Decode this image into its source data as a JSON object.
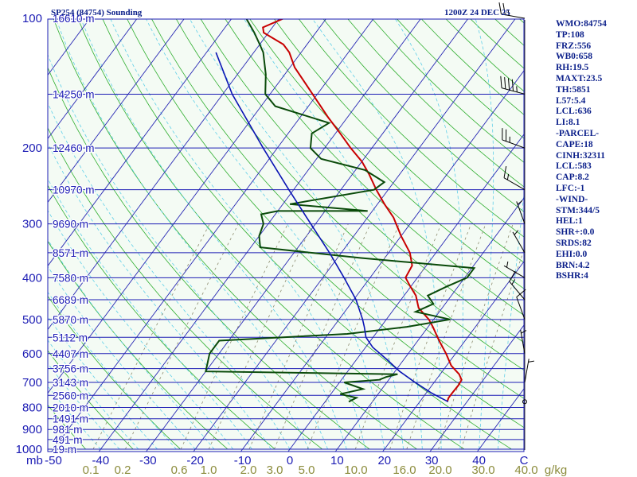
{
  "header": {
    "station_title": "SP254 (84754) Sounding",
    "valid_time": "1200Z 24 DEC 25"
  },
  "stats": [
    "WMO:84754",
    "TP:108",
    "FRZ:556",
    "WB0:658",
    "RH:19.5",
    "MAXT:23.5",
    "TH:5851",
    "L57:5.4",
    "LCL:636",
    "LI:8.1",
    "-PARCEL-",
    "CAPE:18",
    "CINH:32311",
    "LCL:583",
    "CAP:8.2",
    "LFC:-1",
    "-WIND-",
    "STM:344/5",
    "HEL:1",
    "SHR+:0.0",
    "SRDS:82",
    "EHI:0.0",
    "BRN:4.2",
    "BSHR:4"
  ],
  "colors": {
    "background": "#f4fbf4",
    "isobar": "#1c1cb4",
    "isotherm": "#2828b4",
    "dry_adiabat": "#2fae2f",
    "moist_adiabat": "#5fcfe8",
    "mixing_ratio": "#8c8c6e",
    "temperature": "#c80000",
    "dewpoint": "#0a4a0a",
    "parcel": "#0a14b4",
    "axis_text": "#1c1cb4",
    "mixing_text": "#8c8c3c"
  },
  "chart_data": {
    "type": "line",
    "diagram": "Skew-T log-P",
    "xlabel": "",
    "ylabel": "mb",
    "ylim": [
      1000,
      100
    ],
    "x_ticks": [
      -50,
      -40,
      -30,
      -20,
      -10,
      0,
      10,
      20,
      30,
      40
    ],
    "x_tick_labels": [
      "-50",
      "-40",
      "-30",
      "-20",
      "-10",
      "0",
      "10",
      "20",
      "30",
      "40"
    ],
    "right_axis_label": "C",
    "pressure_levels": [
      100,
      200,
      300,
      400,
      500,
      600,
      700,
      800,
      900,
      1000
    ],
    "height_labels": [
      {
        "p": 100,
        "label": "16610 m"
      },
      {
        "p": 150,
        "label": "14250 m"
      },
      {
        "p": 200,
        "label": "12460 m"
      },
      {
        "p": 250,
        "label": "10970 m"
      },
      {
        "p": 300,
        "label": "9690 m"
      },
      {
        "p": 350,
        "label": "8571 m"
      },
      {
        "p": 400,
        "label": "7580 m"
      },
      {
        "p": 450,
        "label": "6689 m"
      },
      {
        "p": 500,
        "label": "5870 m"
      },
      {
        "p": 550,
        "label": "5112 m"
      },
      {
        "p": 600,
        "label": "4407 m"
      },
      {
        "p": 650,
        "label": "3756 m"
      },
      {
        "p": 700,
        "label": "3143 m"
      },
      {
        "p": 750,
        "label": "2560 m"
      },
      {
        "p": 800,
        "label": "2010 m"
      },
      {
        "p": 850,
        "label": "1491 m"
      },
      {
        "p": 900,
        "label": "981 m"
      },
      {
        "p": 950,
        "label": "491 m"
      },
      {
        "p": 1000,
        "label": "19 m"
      }
    ],
    "mixing_ratio_labels": [
      "0.1",
      "0.2",
      "0.6",
      "1.0",
      "2.0",
      "3.0",
      "5.0",
      "10.0",
      "16.0",
      "20.0",
      "30.0",
      "40.0"
    ],
    "mixing_ratio_unit": "g/kg",
    "series": [
      {
        "key": "temperature",
        "points": [
          [
            776,
            25.8
          ],
          [
            760,
            25.5
          ],
          [
            740,
            25.5
          ],
          [
            710,
            25.6
          ],
          [
            690,
            25.4
          ],
          [
            670,
            24.0
          ],
          [
            640,
            21.0
          ],
          [
            600,
            18.0
          ],
          [
            560,
            14.5
          ],
          [
            520,
            11.0
          ],
          [
            500,
            9.0
          ],
          [
            470,
            5.0
          ],
          [
            440,
            2.5
          ],
          [
            420,
            0.0
          ],
          [
            400,
            -2.5
          ],
          [
            375,
            -3.0
          ],
          [
            350,
            -5.5
          ],
          [
            320,
            -10.0
          ],
          [
            290,
            -14.5
          ],
          [
            270,
            -18.5
          ],
          [
            250,
            -22.5
          ],
          [
            230,
            -26.5
          ],
          [
            215,
            -30.0
          ],
          [
            200,
            -34.5
          ],
          [
            185,
            -39.0
          ],
          [
            170,
            -44.0
          ],
          [
            150,
            -51.0
          ],
          [
            130,
            -59.0
          ],
          [
            120,
            -62.5
          ],
          [
            115,
            -65.0
          ],
          [
            108,
            -71.0
          ],
          [
            105,
            -72.0
          ],
          [
            100,
            -69.0
          ]
        ]
      },
      {
        "key": "dewpoint",
        "points": [
          [
            776,
            5.0
          ],
          [
            760,
            6.0
          ],
          [
            745,
            2.0
          ],
          [
            725,
            6.0
          ],
          [
            700,
            1.0
          ],
          [
            690,
            8.0
          ],
          [
            680,
            9.0
          ],
          [
            670,
            11.0
          ],
          [
            660,
            -30.0
          ],
          [
            600,
            -32.0
          ],
          [
            560,
            -32.0
          ],
          [
            540,
            -6.0
          ],
          [
            520,
            5.5
          ],
          [
            500,
            13.5
          ],
          [
            480,
            5.0
          ],
          [
            460,
            7.5
          ],
          [
            440,
            5.0
          ],
          [
            420,
            7.5
          ],
          [
            400,
            10.5
          ],
          [
            380,
            10.5
          ],
          [
            360,
            -15.0
          ],
          [
            340,
            -38.0
          ],
          [
            320,
            -40.0
          ],
          [
            300,
            -41.0
          ],
          [
            285,
            -43.0
          ],
          [
            280,
            -40.0
          ],
          [
            280,
            -21.0
          ],
          [
            270,
            -38.5
          ],
          [
            250,
            -23.0
          ],
          [
            240,
            -22.0
          ],
          [
            225,
            -28.0
          ],
          [
            212,
            -39.0
          ],
          [
            200,
            -43.0
          ],
          [
            185,
            -45.0
          ],
          [
            175,
            -43.0
          ],
          [
            160,
            -57.0
          ],
          [
            150,
            -61.0
          ],
          [
            135,
            -64.0
          ],
          [
            120,
            -68.0
          ],
          [
            115,
            -70.0
          ],
          [
            108,
            -73.0
          ],
          [
            100,
            -77.0
          ]
        ]
      },
      {
        "key": "parcel",
        "points": [
          [
            776,
            26.0
          ],
          [
            740,
            21.0
          ],
          [
            700,
            16.0
          ],
          [
            660,
            11.0
          ],
          [
            620,
            6.5
          ],
          [
            580,
            1.5
          ],
          [
            550,
            -1.5
          ],
          [
            520,
            -3.5
          ],
          [
            500,
            -5.0
          ],
          [
            450,
            -9.5
          ],
          [
            400,
            -15.5
          ],
          [
            350,
            -22.5
          ],
          [
            300,
            -31.0
          ],
          [
            250,
            -41.0
          ],
          [
            200,
            -53.0
          ],
          [
            150,
            -68.0
          ],
          [
            120,
            -78.0
          ]
        ]
      }
    ],
    "wind_barbs": [
      {
        "p": 100,
        "dir": 280,
        "spd": 25
      },
      {
        "p": 150,
        "dir": 285,
        "spd": 45
      },
      {
        "p": 200,
        "dir": 290,
        "spd": 25
      },
      {
        "p": 250,
        "dir": 300,
        "spd": 15
      },
      {
        "p": 300,
        "dir": 340,
        "spd": 5
      },
      {
        "p": 350,
        "dir": 330,
        "spd": 5
      },
      {
        "p": 400,
        "dir": 300,
        "spd": 5
      },
      {
        "p": 450,
        "dir": 320,
        "spd": 15
      },
      {
        "p": 500,
        "dir": 340,
        "spd": 10
      },
      {
        "p": 600,
        "dir": 350,
        "spd": 5
      },
      {
        "p": 700,
        "dir": 10,
        "spd": 5
      }
    ]
  }
}
